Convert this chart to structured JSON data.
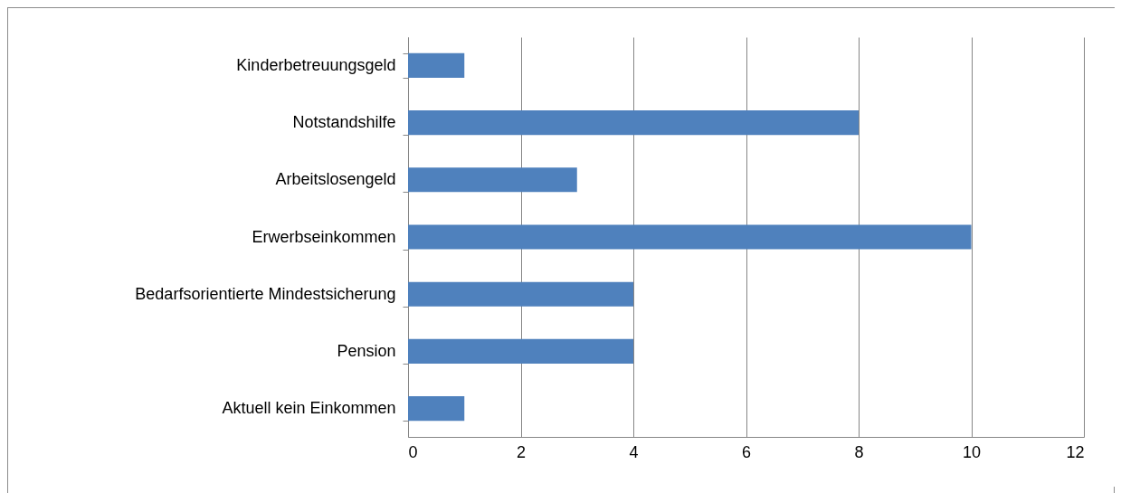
{
  "chart_data": {
    "type": "bar",
    "orientation": "horizontal",
    "categories": [
      "Kinderbetreuungsgeld",
      "Notstandshilfe",
      "Arbeitslosengeld",
      "Erwerbseinkommen",
      "Bedarfsorientierte Mindestsicherung",
      "Pension",
      "Aktuell kein Einkommen"
    ],
    "values": [
      1,
      8,
      3,
      10,
      4,
      4,
      1
    ],
    "color": "#4f81bd",
    "xlim": [
      0,
      12
    ],
    "xticks": [
      0,
      2,
      4,
      6,
      8,
      10,
      12
    ],
    "grid": "x"
  }
}
